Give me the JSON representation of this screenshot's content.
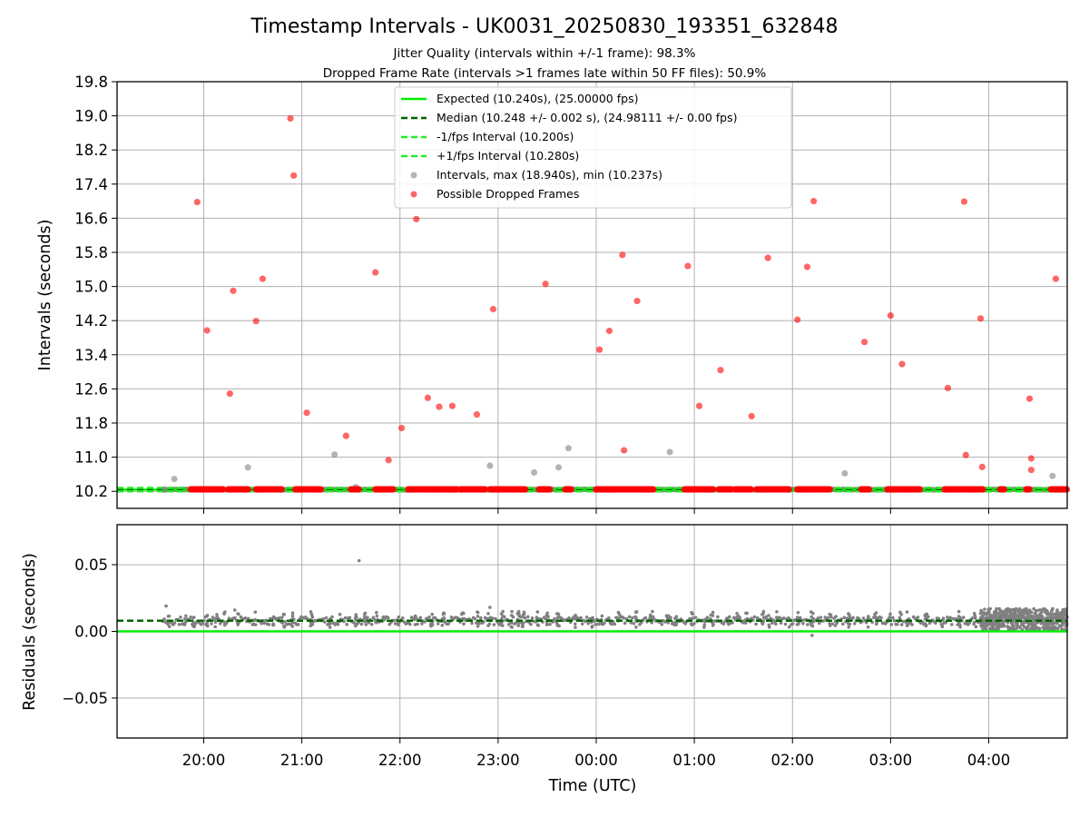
{
  "title": "Timestamp Intervals - UK0031_20250830_193351_632848",
  "subtitle_1": "Jitter Quality (intervals within +/-1 frame): 98.3%",
  "subtitle_2": "Dropped Frame Rate (intervals >1 frames late within 50 FF files): 50.9%",
  "colors": {
    "expected": "#00ee00",
    "median": "#006400",
    "interval_bound": "#22ee22",
    "interval_points": "#808080",
    "dropped": "#ff0000",
    "grid": "#b0b0b0"
  },
  "chart_data": [
    {
      "type": "scatter",
      "panel": "intervals",
      "ylabel": "Intervals (seconds)",
      "ylim": [
        9.8,
        19.8
      ],
      "yticks": [
        "10.2",
        "11.0",
        "11.8",
        "12.6",
        "13.4",
        "14.2",
        "15.0",
        "15.8",
        "16.6",
        "17.4",
        "18.2",
        "19.0",
        "19.8"
      ],
      "xlim": [
        "19:07",
        "04:48"
      ],
      "grid": true,
      "legend_position": "upper center",
      "reference_lines": [
        {
          "name": "Expected (10.240s), (25.00000 fps)",
          "y": 10.24,
          "style": "solid"
        },
        {
          "name": "Median (10.248 +/- 0.002 s), (24.98111 +/- 0.00 fps)",
          "y": 10.248,
          "style": "dashed"
        },
        {
          "name": "-1/fps Interval (10.200s)",
          "y": 10.2,
          "style": "dashed"
        },
        {
          "name": "+1/fps Interval (10.280s)",
          "y": 10.28,
          "style": "dashed"
        }
      ],
      "series": [
        {
          "name": "Intervals, max (18.940s), min (10.237s)",
          "points": [
            [
              "19:36",
              10.24
            ],
            [
              "19:42",
              10.49
            ],
            [
              "20:27",
              10.76
            ],
            [
              "21:20",
              11.06
            ],
            [
              "21:33",
              10.3
            ],
            [
              "22:55",
              10.8
            ],
            [
              "23:22",
              10.64
            ],
            [
              "23:37",
              10.76
            ],
            [
              "23:43",
              11.21
            ],
            [
              "00:45",
              11.12
            ],
            [
              "02:32",
              10.62
            ],
            [
              "04:39",
              10.56
            ]
          ]
        },
        {
          "name": "Possible Dropped Frames",
          "points": [
            [
              "19:56",
              16.98
            ],
            [
              "20:02",
              13.97
            ],
            [
              "20:16",
              12.49
            ],
            [
              "20:18",
              14.9
            ],
            [
              "20:32",
              14.19
            ],
            [
              "20:36",
              15.18
            ],
            [
              "20:53",
              18.94
            ],
            [
              "20:55",
              17.6
            ],
            [
              "21:03",
              12.04
            ],
            [
              "21:27",
              11.5
            ],
            [
              "21:45",
              15.33
            ],
            [
              "21:53",
              10.93
            ],
            [
              "22:01",
              11.68
            ],
            [
              "22:10",
              16.58
            ],
            [
              "22:17",
              12.39
            ],
            [
              "22:24",
              12.18
            ],
            [
              "22:32",
              12.2
            ],
            [
              "22:47",
              12.0
            ],
            [
              "22:57",
              14.47
            ],
            [
              "23:29",
              15.06
            ],
            [
              "00:02",
              13.52
            ],
            [
              "00:08",
              13.96
            ],
            [
              "00:16",
              15.74
            ],
            [
              "00:17",
              11.16
            ],
            [
              "00:25",
              14.66
            ],
            [
              "00:56",
              15.48
            ],
            [
              "01:03",
              12.2
            ],
            [
              "01:16",
              13.04
            ],
            [
              "01:35",
              11.96
            ],
            [
              "01:45",
              15.67
            ],
            [
              "02:03",
              14.22
            ],
            [
              "02:09",
              15.46
            ],
            [
              "02:13",
              17.0
            ],
            [
              "02:44",
              13.7
            ],
            [
              "03:00",
              14.32
            ],
            [
              "03:07",
              13.18
            ],
            [
              "03:35",
              12.62
            ],
            [
              "03:45",
              16.99
            ],
            [
              "03:46",
              11.05
            ],
            [
              "03:55",
              14.25
            ],
            [
              "03:56",
              10.77
            ],
            [
              "04:25",
              12.37
            ],
            [
              "04:26",
              10.97
            ],
            [
              "04:26",
              10.7
            ],
            [
              "04:41",
              15.18
            ]
          ],
          "baseline_runs": [
            [
              "19:52",
              "20:12"
            ],
            [
              "20:15",
              "20:27"
            ],
            [
              "20:32",
              "20:48"
            ],
            [
              "20:56",
              "21:12"
            ],
            [
              "21:30",
              "21:35"
            ],
            [
              "21:45",
              "21:56"
            ],
            [
              "22:05",
              "22:35"
            ],
            [
              "22:37",
              "22:52"
            ],
            [
              "22:55",
              "23:17"
            ],
            [
              "23:25",
              "23:32"
            ],
            [
              "23:41",
              "23:45"
            ],
            [
              "00:00",
              "00:35"
            ],
            [
              "00:54",
              "01:12"
            ],
            [
              "01:15",
              "01:23"
            ],
            [
              "01:25",
              "01:35"
            ],
            [
              "01:38",
              "01:58"
            ],
            [
              "02:03",
              "02:23"
            ],
            [
              "02:42",
              "02:47"
            ],
            [
              "02:58",
              "03:18"
            ],
            [
              "03:33",
              "03:57"
            ],
            [
              "04:07",
              "04:10"
            ],
            [
              "04:23",
              "04:25"
            ],
            [
              "04:38",
              "04:48"
            ]
          ]
        }
      ]
    },
    {
      "type": "scatter",
      "panel": "residuals",
      "xlabel": "Time (UTC)",
      "ylabel": "Residuals (seconds)",
      "ylim": [
        -0.08,
        0.08
      ],
      "yticks": [
        "0.05",
        "0.00",
        "−0.05"
      ],
      "xticks": [
        "20:00",
        "21:00",
        "22:00",
        "23:00",
        "00:00",
        "01:00",
        "02:00",
        "03:00",
        "04:00"
      ],
      "grid": true,
      "reference_lines": [
        {
          "name": "Expected",
          "y": 0.0,
          "style": "solid"
        },
        {
          "name": "Median",
          "y": 0.008,
          "style": "dashed"
        }
      ],
      "series": [
        {
          "name": "Residuals",
          "typical_range": [
            0.003,
            0.016
          ],
          "outliers": [
            [
              "21:35",
              0.053
            ],
            [
              "19:37",
              0.019
            ],
            [
              "20:19",
              0.016
            ],
            [
              "22:55",
              0.018
            ],
            [
              "02:12",
              -0.003
            ]
          ],
          "dense_block": [
            "03:55",
            "04:48"
          ]
        }
      ]
    }
  ]
}
